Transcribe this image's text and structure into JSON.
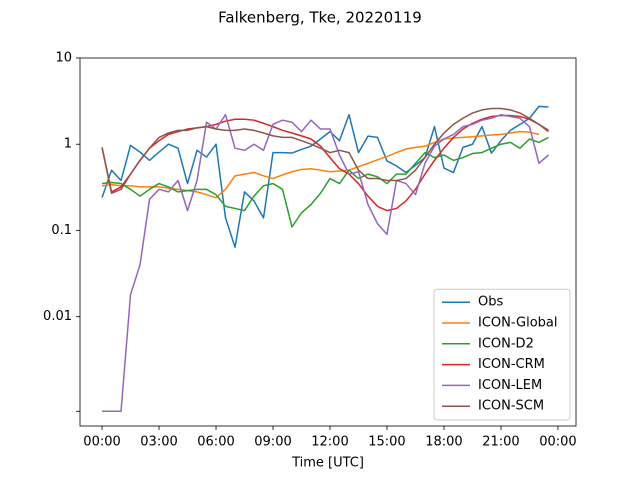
{
  "chart_data": {
    "type": "line",
    "title": "Falkenberg, Tke, 20220119",
    "xlabel": "Time [UTC]",
    "yscale": "log",
    "legend": "lower right",
    "x": [
      0,
      0.5,
      1,
      1.5,
      2,
      2.5,
      3,
      3.5,
      4,
      4.5,
      5,
      5.5,
      6,
      6.5,
      7,
      7.5,
      8,
      8.5,
      9,
      9.5,
      10,
      10.5,
      11,
      11.5,
      12,
      12.5,
      13,
      13.5,
      14,
      14.5,
      15,
      15.5,
      16,
      16.5,
      17,
      17.5,
      18,
      18.5,
      19,
      19.5,
      20,
      20.5,
      21,
      21.5,
      22,
      22.5,
      23,
      23.5
    ],
    "xlim": [
      -1.16,
      24.95
    ],
    "xticks": [
      {
        "value": 0,
        "label": "00:00"
      },
      {
        "value": 3,
        "label": "03:00"
      },
      {
        "value": 6,
        "label": "06:00"
      },
      {
        "value": 9,
        "label": "09:00"
      },
      {
        "value": 12,
        "label": "12:00"
      },
      {
        "value": 15,
        "label": "15:00"
      },
      {
        "value": 18,
        "label": "18:00"
      },
      {
        "value": 21,
        "label": "21:00"
      },
      {
        "value": 24,
        "label": "00:00"
      }
    ],
    "ylim": [
      0.00054,
      10
    ],
    "yticks": [
      {
        "value": 0.0008,
        "label": null
      },
      0.01,
      0.1,
      1,
      10
    ],
    "series": [
      {
        "name": "Obs",
        "color": "#1f77b4",
        "values": [
          0.24,
          0.5,
          0.38,
          0.97,
          0.81,
          0.65,
          0.81,
          1.0,
          0.9,
          0.35,
          0.85,
          0.71,
          1.0,
          0.14,
          0.064,
          0.28,
          0.22,
          0.14,
          0.8,
          0.8,
          0.79,
          0.87,
          0.95,
          1.15,
          1.4,
          1.1,
          2.2,
          0.8,
          1.24,
          1.2,
          0.64,
          0.56,
          0.47,
          0.57,
          0.7,
          1.6,
          0.53,
          0.47,
          0.92,
          1.0,
          1.6,
          0.79,
          1.1,
          1.45,
          1.7,
          2.0,
          2.75,
          2.7
        ]
      },
      {
        "name": "ICON-Global",
        "color": "#ff7f0e",
        "values": [
          0.33,
          0.34,
          0.33,
          0.33,
          0.32,
          0.32,
          0.32,
          0.31,
          0.3,
          0.29,
          0.28,
          0.26,
          0.24,
          0.3,
          0.43,
          0.45,
          0.47,
          0.43,
          0.4,
          0.44,
          0.48,
          0.51,
          0.52,
          0.5,
          0.48,
          0.49,
          0.5,
          0.55,
          0.6,
          0.66,
          0.72,
          0.8,
          0.88,
          0.92,
          0.95,
          1.05,
          1.15,
          1.18,
          1.2,
          1.22,
          1.25,
          1.28,
          1.3,
          1.35,
          1.4,
          1.38,
          1.3,
          null
        ]
      },
      {
        "name": "ICON-D2",
        "color": "#2ca02c",
        "values": [
          0.35,
          0.36,
          0.35,
          0.3,
          0.25,
          0.3,
          0.35,
          0.32,
          0.28,
          0.29,
          0.3,
          0.3,
          0.26,
          0.19,
          0.18,
          0.17,
          0.25,
          0.33,
          0.35,
          0.3,
          0.11,
          0.16,
          0.2,
          0.27,
          0.4,
          0.35,
          0.5,
          0.4,
          0.45,
          0.42,
          0.35,
          0.45,
          0.45,
          0.6,
          0.8,
          0.7,
          0.75,
          0.65,
          0.7,
          0.78,
          0.8,
          0.9,
          1.0,
          1.05,
          0.9,
          1.15,
          1.05,
          1.2
        ]
      },
      {
        "name": "ICON-CRM",
        "color": "#d62728",
        "values": [
          0.92,
          0.28,
          0.32,
          0.45,
          0.65,
          0.9,
          1.1,
          1.3,
          1.4,
          1.5,
          1.55,
          1.6,
          1.7,
          1.85,
          1.95,
          1.95,
          1.9,
          1.75,
          1.6,
          1.45,
          1.35,
          1.25,
          1.15,
          0.95,
          0.7,
          0.52,
          0.45,
          0.35,
          0.25,
          0.19,
          0.17,
          0.18,
          0.22,
          0.3,
          0.45,
          0.65,
          0.9,
          1.2,
          1.5,
          1.75,
          1.95,
          2.1,
          2.15,
          2.15,
          2.1,
          1.95,
          1.7,
          1.45
        ]
      },
      {
        "name": "ICON-LEM",
        "color": "#9467bd",
        "values": [
          0.0008,
          0.0008,
          0.0008,
          0.018,
          0.04,
          0.23,
          0.3,
          0.28,
          0.38,
          0.17,
          0.38,
          1.8,
          1.5,
          2.2,
          0.9,
          0.85,
          1.0,
          0.85,
          1.7,
          1.9,
          1.8,
          1.4,
          1.9,
          1.5,
          1.5,
          0.75,
          0.45,
          0.48,
          0.2,
          0.12,
          0.09,
          0.38,
          0.35,
          0.26,
          0.6,
          0.95,
          1.15,
          1.3,
          1.6,
          1.7,
          1.9,
          2.0,
          2.2,
          2.1,
          2.0,
          1.6,
          0.6,
          0.75
        ]
      },
      {
        "name": "ICON-SCM",
        "color": "#8c564b",
        "values": [
          0.92,
          0.27,
          0.3,
          0.45,
          0.65,
          0.9,
          1.2,
          1.35,
          1.45,
          1.45,
          1.55,
          1.6,
          1.5,
          1.45,
          1.45,
          1.5,
          1.45,
          1.35,
          1.25,
          1.2,
          1.2,
          1.1,
          1.0,
          0.9,
          0.8,
          0.85,
          0.8,
          0.5,
          0.4,
          0.4,
          0.38,
          0.38,
          0.4,
          0.5,
          0.7,
          1.0,
          1.35,
          1.7,
          2.0,
          2.3,
          2.5,
          2.6,
          2.6,
          2.5,
          2.3,
          2.0,
          1.7,
          1.4
        ]
      }
    ]
  }
}
